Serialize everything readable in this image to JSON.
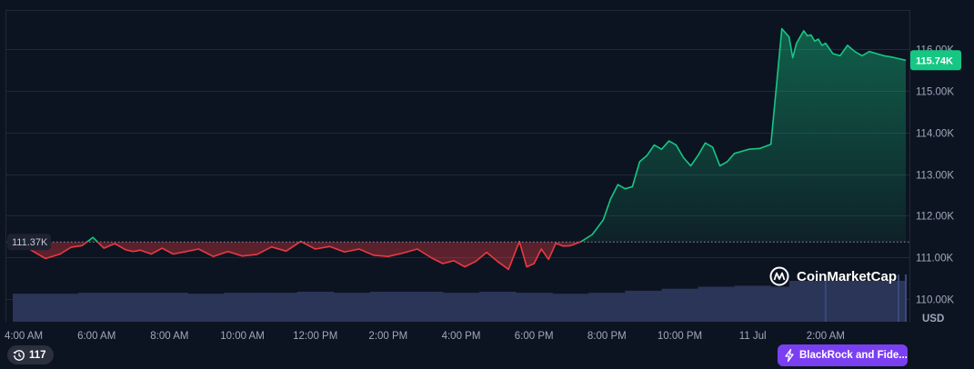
{
  "colors": {
    "background": "#0d1421",
    "up": "#16c784",
    "down": "#ea3943",
    "grid": "#222836",
    "volume": "#2a3558",
    "badge": "#2b2f3e",
    "news": "#7b3ff2"
  },
  "chart_data": {
    "type": "line",
    "title": "",
    "currency_label": "USD",
    "reference_price": 111.37,
    "reference_label": "111.37K",
    "current_price": 115.74,
    "current_label": "115.74K",
    "y_ticks": [
      {
        "value": 110,
        "label": "110.00K"
      },
      {
        "value": 111,
        "label": "111.00K"
      },
      {
        "value": 112,
        "label": "112.00K"
      },
      {
        "value": 113,
        "label": "113.00K"
      },
      {
        "value": 114,
        "label": "114.00K"
      },
      {
        "value": 115,
        "label": "115.00K"
      },
      {
        "value": 116,
        "label": "116.00K"
      }
    ],
    "ylim": [
      109.45,
      116.95
    ],
    "xlim": [
      3.5,
      28.3
    ],
    "x_ticks": [
      {
        "value": 4,
        "label": "4:00 AM"
      },
      {
        "value": 6,
        "label": "6:00 AM"
      },
      {
        "value": 8,
        "label": "8:00 AM"
      },
      {
        "value": 10,
        "label": "10:00 AM"
      },
      {
        "value": 12,
        "label": "12:00 PM"
      },
      {
        "value": 14,
        "label": "2:00 PM"
      },
      {
        "value": 16,
        "label": "4:00 PM"
      },
      {
        "value": 18,
        "label": "6:00 PM"
      },
      {
        "value": 20,
        "label": "8:00 PM"
      },
      {
        "value": 22,
        "label": "10:00 PM"
      },
      {
        "value": 24,
        "label": "11 Jul"
      },
      {
        "value": 26,
        "label": "2:00 AM"
      }
    ],
    "series": [
      {
        "unit": "K USD",
        "x": [
          3.7,
          4.0,
          4.3,
          4.6,
          5.0,
          5.3,
          5.6,
          5.9,
          6.2,
          6.5,
          6.8,
          7.0,
          7.2,
          7.5,
          7.8,
          8.1,
          8.4,
          8.8,
          9.2,
          9.6,
          10.0,
          10.4,
          10.8,
          11.2,
          11.6,
          12.0,
          12.4,
          12.8,
          13.2,
          13.6,
          14.0,
          14.4,
          14.8,
          15.2,
          15.5,
          15.8,
          16.1,
          16.4,
          16.7,
          17.0,
          17.3,
          17.6,
          17.8,
          18.0,
          18.2,
          18.4,
          18.6,
          18.8,
          19.0,
          19.3,
          19.6,
          19.9,
          20.1,
          20.3,
          20.5,
          20.7,
          20.9,
          21.1,
          21.3,
          21.5,
          21.7,
          21.9,
          22.1,
          22.3,
          22.5,
          22.7,
          22.9,
          23.1,
          23.3,
          23.5,
          23.7,
          23.9,
          24.2,
          24.5,
          24.8,
          25.0,
          25.1,
          25.2,
          25.3,
          25.4,
          25.5,
          25.6,
          25.7,
          25.8,
          25.9,
          26.0,
          26.2,
          26.4,
          26.6,
          26.8,
          27.0,
          27.2,
          27.4,
          27.6,
          27.8,
          28.0,
          28.2
        ],
        "y": [
          111.37,
          111.28,
          111.12,
          110.97,
          111.08,
          111.24,
          111.28,
          111.48,
          111.22,
          111.33,
          111.18,
          111.14,
          111.17,
          111.08,
          111.22,
          111.08,
          111.13,
          111.2,
          111.02,
          111.14,
          111.03,
          111.07,
          111.25,
          111.15,
          111.38,
          111.2,
          111.26,
          111.13,
          111.2,
          111.05,
          111.02,
          111.1,
          111.2,
          110.98,
          110.85,
          110.92,
          110.77,
          110.9,
          111.12,
          110.9,
          110.71,
          111.38,
          110.77,
          110.85,
          111.2,
          110.95,
          111.34,
          111.27,
          111.28,
          111.38,
          111.55,
          111.9,
          112.4,
          112.75,
          112.65,
          112.7,
          113.3,
          113.45,
          113.7,
          113.6,
          113.8,
          113.7,
          113.4,
          113.2,
          113.45,
          113.75,
          113.65,
          113.2,
          113.3,
          113.5,
          113.55,
          113.6,
          113.62,
          113.72,
          116.5,
          116.3,
          115.8,
          116.15,
          116.3,
          116.45,
          116.33,
          116.35,
          116.2,
          116.25,
          116.1,
          116.15,
          115.9,
          115.85,
          116.1,
          115.95,
          115.85,
          115.95,
          115.9,
          115.85,
          115.82,
          115.78,
          115.74
        ]
      }
    ],
    "volume": {
      "x": [
        3.7,
        4.5,
        5.5,
        6.5,
        7.5,
        8.5,
        9.5,
        10.5,
        11.5,
        12.5,
        13.5,
        14.5,
        15.5,
        16.5,
        17.5,
        18.5,
        19.5,
        20.5,
        21.5,
        22.5,
        23.5,
        24.5,
        25.0,
        25.5,
        26.5,
        27.5,
        28.2
      ],
      "values": [
        0.28,
        0.28,
        0.29,
        0.29,
        0.29,
        0.28,
        0.29,
        0.29,
        0.3,
        0.29,
        0.3,
        0.3,
        0.29,
        0.3,
        0.29,
        0.28,
        0.29,
        0.31,
        0.33,
        0.35,
        0.36,
        0.35,
        0.5,
        0.49,
        0.48,
        0.48,
        0.48
      ]
    },
    "grid": true
  },
  "watermark": {
    "text": "CoinMarketCap"
  },
  "history_badge": {
    "count": "117"
  },
  "news": {
    "label": "BlackRock and Fide..."
  }
}
